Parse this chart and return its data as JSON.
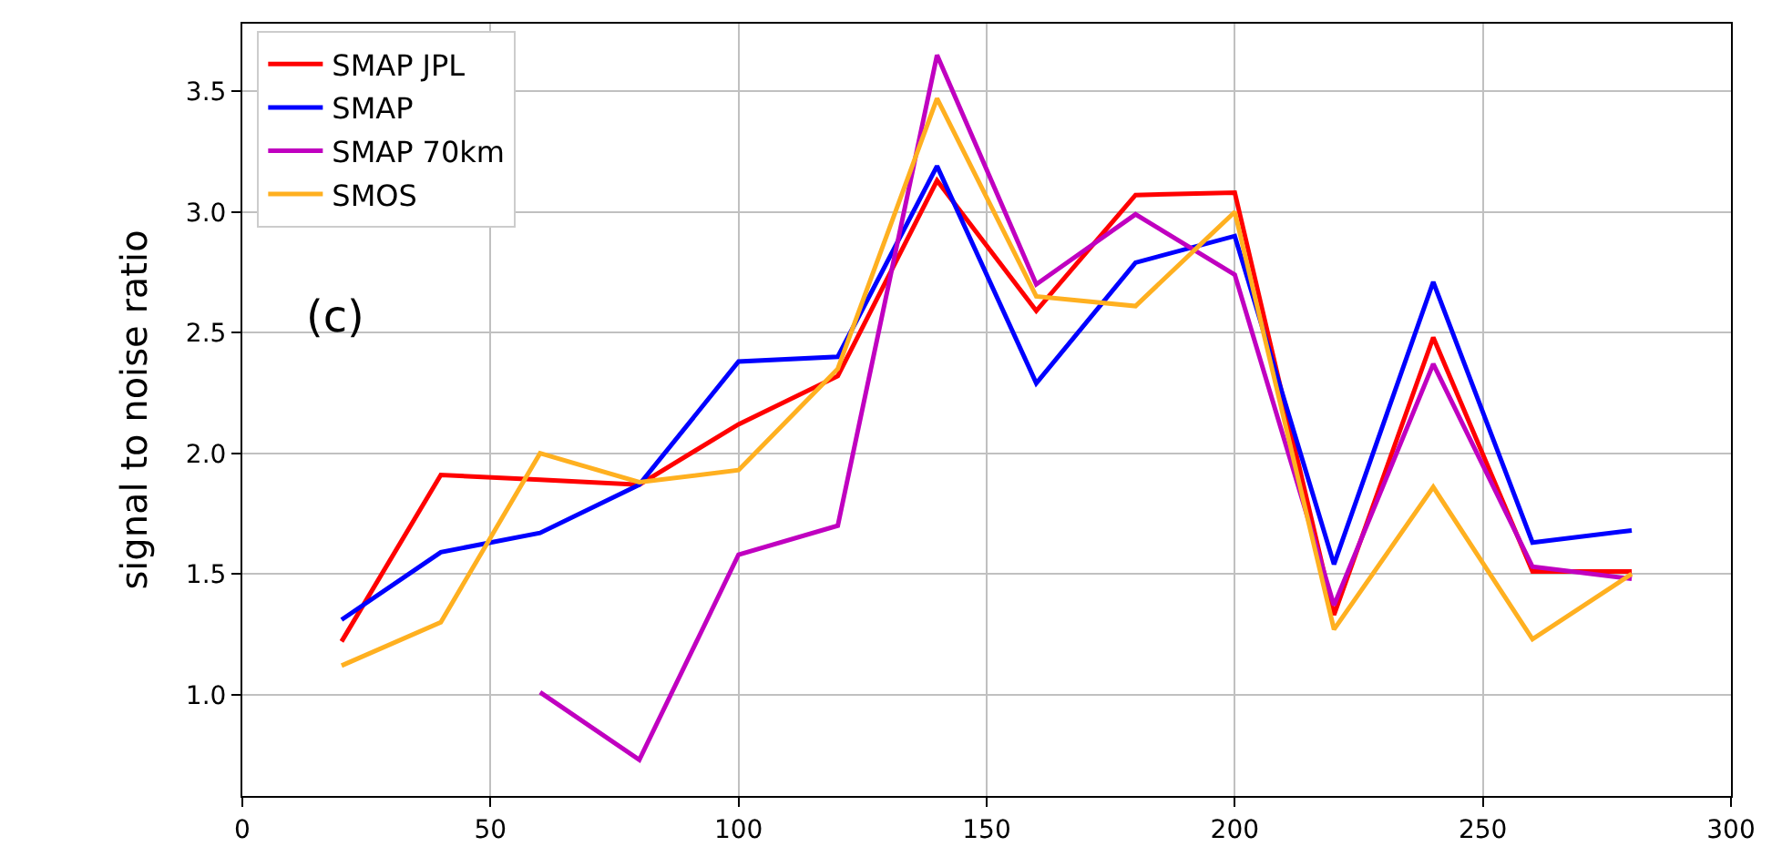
{
  "chart_data": {
    "type": "line",
    "ylabel": "signal to noise ratio",
    "annotations": [
      "(c)"
    ],
    "x": [
      20,
      40,
      60,
      80,
      100,
      120,
      140,
      160,
      180,
      200,
      220,
      240,
      260,
      280
    ],
    "series": [
      {
        "name": "SMAP JPL",
        "color": "#ff0000",
        "values": [
          1.22,
          1.91,
          1.89,
          1.87,
          2.12,
          2.32,
          3.13,
          2.59,
          3.07,
          3.08,
          1.33,
          2.48,
          1.51,
          1.51
        ]
      },
      {
        "name": "SMAP",
        "color": "#0000ff",
        "values": [
          1.31,
          1.59,
          1.67,
          1.87,
          2.38,
          2.4,
          3.19,
          2.29,
          2.79,
          2.9,
          1.54,
          2.71,
          1.63,
          1.68
        ]
      },
      {
        "name": "SMAP 70km",
        "color": "#c000c0",
        "values": [
          null,
          null,
          1.01,
          0.73,
          1.58,
          1.7,
          3.65,
          2.7,
          2.99,
          2.74,
          1.37,
          2.37,
          1.53,
          1.48
        ]
      },
      {
        "name": "SMOS",
        "color": "#ffb020",
        "values": [
          1.12,
          1.3,
          2.0,
          1.88,
          1.93,
          2.35,
          3.47,
          2.65,
          2.61,
          3.0,
          1.27,
          1.86,
          1.23,
          1.5
        ]
      }
    ],
    "xlim": [
      0,
      300
    ],
    "xticks": [
      0,
      50,
      100,
      150,
      200,
      250,
      300
    ],
    "ylim": [
      0.58,
      3.78
    ],
    "yticks": [
      {
        "value": 1,
        "label": "1.0"
      },
      1.5,
      {
        "value": 2,
        "label": "2.0"
      },
      2.5,
      {
        "value": 3,
        "label": "3.0"
      },
      3.5
    ],
    "grid": true,
    "legend": "top left",
    "marker": "none",
    "line_style": "solid"
  }
}
